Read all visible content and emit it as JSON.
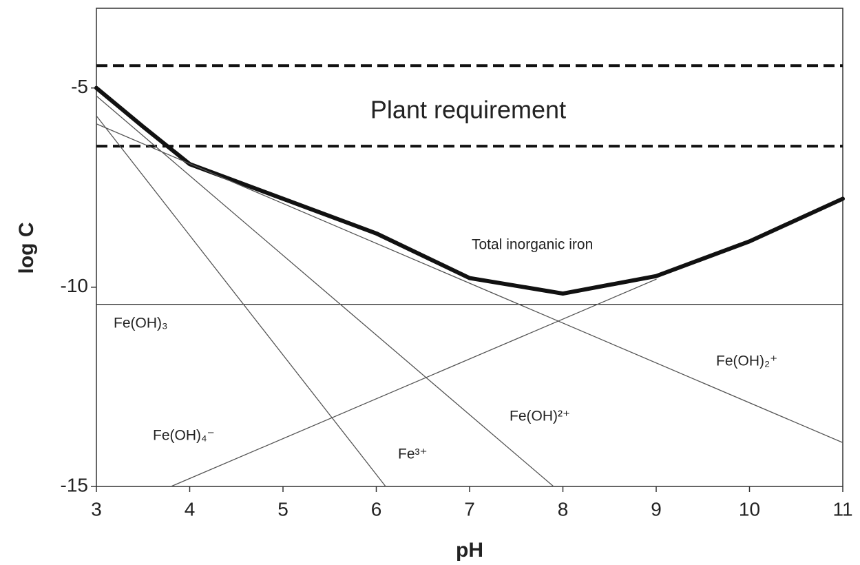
{
  "chart_data": {
    "type": "line",
    "xlabel": "pH",
    "ylabel": "log C",
    "xlim": [
      3,
      11
    ],
    "xticks": [
      3,
      4,
      5,
      6,
      7,
      8,
      9,
      10,
      11
    ],
    "ylim": [
      -15,
      -3
    ],
    "yticks": [
      -15,
      -10,
      -5
    ],
    "grid": false,
    "reference_lines": {
      "label": "Plant requirement",
      "values": [
        -4.44,
        -6.46
      ],
      "color": "#111111",
      "style": "dashed"
    },
    "series": [
      {
        "name": "Total inorganic iron",
        "color": "#111111",
        "line_width": 6,
        "x": [
          3,
          3.5,
          4,
          5,
          6,
          7,
          8,
          9,
          10,
          11
        ],
        "values": [
          -5,
          -5.97,
          -6.91,
          -7.78,
          -8.65,
          -9.77,
          -10.16,
          -9.72,
          -8.85,
          -7.78
        ]
      },
      {
        "name": "Fe(OH)₃",
        "color": "#333333",
        "line_width": 1.3,
        "x": [
          3,
          11
        ],
        "values": [
          -10.43,
          -10.43
        ]
      },
      {
        "name": "Fe³⁺",
        "color": "#555555",
        "line_width": 1.3,
        "x": [
          3,
          6.1
        ],
        "values": [
          -5.7,
          -15
        ]
      },
      {
        "name": "Fe(OH)²⁺",
        "color": "#555555",
        "line_width": 1.3,
        "x": [
          3,
          7.9
        ],
        "values": [
          -5.2,
          -15
        ]
      },
      {
        "name": "Fe(OH)₂⁺",
        "color": "#555555",
        "line_width": 1.3,
        "x": [
          3,
          11
        ],
        "values": [
          -5.9,
          -13.9
        ]
      },
      {
        "name": "Fe(OH)₄⁻",
        "color": "#555555",
        "line_width": 1.3,
        "x": [
          3.8,
          9
        ],
        "values": [
          -15,
          -9.8
        ]
      }
    ]
  }
}
